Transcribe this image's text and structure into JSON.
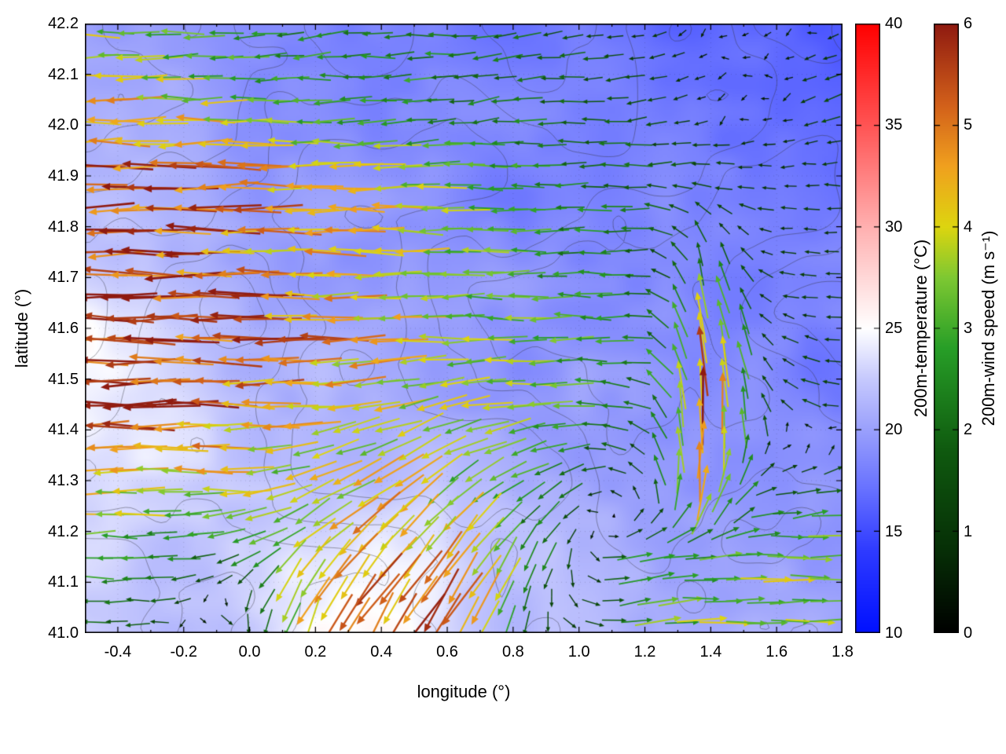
{
  "chart_data": {
    "type": "heatmap",
    "subtype": "temperature-field-with-wind-vector-overlay-and-terrain-contours",
    "title": "",
    "xlabel": "longitude (°)",
    "ylabel": "latitude (°)",
    "xlim": [
      -0.5,
      1.8
    ],
    "ylim": [
      41.0,
      42.2
    ],
    "grid": "faint-dotted",
    "xticks": {
      "values": [
        -0.4,
        -0.2,
        0.0,
        0.2,
        0.4,
        0.6,
        0.8,
        1.0,
        1.2,
        1.4,
        1.6,
        1.8
      ],
      "labels": [
        "-0.4",
        "-0.2",
        "0.0",
        "0.2",
        "0.4",
        "0.6",
        "0.8",
        "1.0",
        "1.2",
        "1.4",
        "1.6",
        "1.8"
      ]
    },
    "yticks": {
      "values": [
        41.0,
        41.1,
        41.2,
        41.3,
        41.4,
        41.5,
        41.6,
        41.7,
        41.8,
        41.9,
        42.0,
        42.1,
        42.2
      ],
      "labels": [
        "41.0",
        "41.1",
        "41.2",
        "41.3",
        "41.4",
        "41.5",
        "41.6",
        "41.7",
        "41.8",
        "41.9",
        "42.0",
        "42.1",
        "42.2"
      ]
    },
    "colorbars": [
      {
        "label": "200m-temperature (°C)",
        "min": 10,
        "max": 40,
        "ticks": [
          10,
          15,
          20,
          25,
          30,
          35,
          40
        ],
        "tick_labels": [
          "10",
          "15",
          "20",
          "25",
          "30",
          "35",
          "40"
        ],
        "stops": [
          {
            "v": 10,
            "c": "#0010ff"
          },
          {
            "v": 14,
            "c": "#2e3aff"
          },
          {
            "v": 17,
            "c": "#6670ff"
          },
          {
            "v": 20,
            "c": "#9aa0fc"
          },
          {
            "v": 22.5,
            "c": "#c6c9fd"
          },
          {
            "v": 25,
            "c": "#ffffff"
          },
          {
            "v": 30,
            "c": "#ffb0b0"
          },
          {
            "v": 35,
            "c": "#ff5454"
          },
          {
            "v": 40,
            "c": "#ff0000"
          }
        ]
      },
      {
        "label": "200m-wind speed (m s⁻¹)",
        "min": 0,
        "max": 6,
        "ticks": [
          0,
          1,
          2,
          3,
          4,
          5,
          6
        ],
        "tick_labels": [
          "0",
          "1",
          "2",
          "3",
          "4",
          "5",
          "6"
        ],
        "stops": [
          {
            "v": 0,
            "c": "#000000"
          },
          {
            "v": 0.8,
            "c": "#062e06"
          },
          {
            "v": 1.8,
            "c": "#0f5a0f"
          },
          {
            "v": 2.8,
            "c": "#279e27"
          },
          {
            "v": 3.5,
            "c": "#7ec832"
          },
          {
            "v": 4.0,
            "c": "#ddd50f"
          },
          {
            "v": 4.6,
            "c": "#f0a01e"
          },
          {
            "v": 5.2,
            "c": "#d2601a"
          },
          {
            "v": 6.0,
            "c": "#8f1a10"
          }
        ]
      }
    ],
    "temperature_grid": {
      "units": "degC",
      "lon": [
        -0.5,
        -0.291,
        -0.082,
        0.127,
        0.336,
        0.545,
        0.755,
        0.964,
        1.173,
        1.382,
        1.591,
        1.8
      ],
      "lat_top_to_bottom": [
        42.2,
        42.05,
        41.9,
        41.75,
        41.6,
        41.45,
        41.3,
        41.15,
        41.0
      ],
      "values_c": [
        [
          20.0,
          19.5,
          19.0,
          19.0,
          18.5,
          18.0,
          18.0,
          17.5,
          17.0,
          16.5,
          16.5,
          16.5
        ],
        [
          20.5,
          20.0,
          19.5,
          19.0,
          18.5,
          18.5,
          18.0,
          18.0,
          17.5,
          17.0,
          16.5,
          16.5
        ],
        [
          21.0,
          20.5,
          20.0,
          19.5,
          19.0,
          19.0,
          18.5,
          18.5,
          18.0,
          17.5,
          17.0,
          17.0
        ],
        [
          22.0,
          21.5,
          21.0,
          20.0,
          19.5,
          19.5,
          19.0,
          19.0,
          18.5,
          18.0,
          17.5,
          17.5
        ],
        [
          24.5,
          23.5,
          22.0,
          21.0,
          20.5,
          20.0,
          19.5,
          19.0,
          19.0,
          18.5,
          18.0,
          18.0
        ],
        [
          24.0,
          23.5,
          22.5,
          21.5,
          21.0,
          20.5,
          20.0,
          19.5,
          19.5,
          19.0,
          18.5,
          18.5
        ],
        [
          23.0,
          23.0,
          22.5,
          22.0,
          22.0,
          21.5,
          21.0,
          20.5,
          20.0,
          19.5,
          19.0,
          19.0
        ],
        [
          23.0,
          22.5,
          22.5,
          24.0,
          24.5,
          23.5,
          22.0,
          21.5,
          21.0,
          20.5,
          20.5,
          20.0
        ],
        [
          22.5,
          22.0,
          22.5,
          25.0,
          25.5,
          24.0,
          22.5,
          22.0,
          21.5,
          21.0,
          21.0,
          20.5
        ]
      ]
    },
    "wind_grid": {
      "units": "m/s",
      "lon": [
        -0.5,
        -0.291,
        -0.082,
        0.127,
        0.336,
        0.545,
        0.755,
        0.964,
        1.173,
        1.382,
        1.591,
        1.8
      ],
      "lat_top_to_bottom": [
        42.2,
        42.05,
        41.9,
        41.75,
        41.6,
        41.45,
        41.3,
        41.15,
        41.0
      ],
      "u_ms": [
        [
          -3.5,
          -3.0,
          -2.5,
          -2.5,
          -2.0,
          -2.5,
          -2.0,
          -1.5,
          -1.0,
          -0.5,
          -0.4,
          -0.8
        ],
        [
          -4.5,
          -4.0,
          -3.5,
          -3.0,
          -2.5,
          -2.5,
          -2.0,
          -2.0,
          -1.5,
          -0.6,
          -0.5,
          -1.5
        ],
        [
          -5.5,
          -5.5,
          -5.0,
          -4.5,
          -4.0,
          -3.5,
          -3.0,
          -2.5,
          -2.0,
          -1.5,
          -1.0,
          -1.0
        ],
        [
          -5.8,
          -5.5,
          -5.0,
          -4.5,
          -4.5,
          -4.0,
          -3.0,
          -2.5,
          -2.0,
          -0.5,
          -1.0,
          -1.0
        ],
        [
          -6.0,
          -5.8,
          -5.5,
          -5.0,
          -4.5,
          -4.0,
          -3.5,
          -3.0,
          -2.5,
          -0.5,
          -1.0,
          -1.0
        ],
        [
          -5.8,
          -5.5,
          -5.0,
          -4.5,
          -4.0,
          -3.5,
          -3.5,
          -3.0,
          -2.0,
          0.0,
          -1.0,
          -1.5
        ],
        [
          -4.5,
          -4.0,
          -4.0,
          -3.5,
          -3.5,
          -3.0,
          -2.5,
          -2.0,
          -1.0,
          0.5,
          1.5,
          2.0
        ],
        [
          -3.0,
          -2.5,
          -2.0,
          -2.5,
          -3.0,
          -3.0,
          -2.0,
          -0.5,
          2.5,
          3.0,
          3.5,
          3.5
        ],
        [
          -2.0,
          -1.5,
          1.5,
          -1.0,
          -2.5,
          -3.0,
          -1.5,
          1.0,
          3.0,
          3.5,
          3.5,
          3.5
        ]
      ],
      "v_ms": [
        [
          0.0,
          0.0,
          0.0,
          -0.5,
          0.0,
          0.0,
          -0.3,
          -0.3,
          -0.2,
          -0.2,
          -0.1,
          -0.3
        ],
        [
          0.0,
          0.0,
          0.0,
          0.0,
          0.0,
          -0.3,
          -0.3,
          0.0,
          -0.3,
          -0.3,
          -0.2,
          -0.5
        ],
        [
          0.0,
          0.0,
          0.0,
          0.0,
          0.0,
          0.0,
          0.0,
          0.0,
          0.0,
          0.0,
          0.0,
          0.0
        ],
        [
          0.0,
          0.0,
          0.0,
          0.0,
          0.0,
          0.0,
          0.0,
          0.0,
          0.0,
          2.0,
          0.0,
          0.0
        ],
        [
          0.0,
          0.0,
          0.0,
          0.0,
          0.0,
          0.0,
          0.0,
          0.0,
          0.0,
          4.5,
          0.5,
          0.0
        ],
        [
          0.0,
          0.0,
          0.0,
          0.0,
          -0.5,
          -1.0,
          -0.5,
          0.0,
          0.5,
          5.5,
          1.0,
          0.0
        ],
        [
          0.0,
          0.0,
          0.0,
          -1.0,
          -2.0,
          -2.5,
          -1.5,
          -1.0,
          1.0,
          4.5,
          0.5,
          0.5
        ],
        [
          0.0,
          0.0,
          -0.5,
          -2.5,
          -3.5,
          -4.0,
          -3.0,
          -1.5,
          0.5,
          0.3,
          0.0,
          0.0
        ],
        [
          0.0,
          0.0,
          -0.5,
          -3.5,
          -4.5,
          -4.5,
          -3.5,
          -0.5,
          0.3,
          0.0,
          0.0,
          0.0
        ]
      ]
    },
    "contours": {
      "color": "#32323c",
      "levels_normalized": [
        0.45,
        0.55,
        0.65,
        0.75,
        0.85,
        0.95,
        1.05
      ]
    }
  }
}
